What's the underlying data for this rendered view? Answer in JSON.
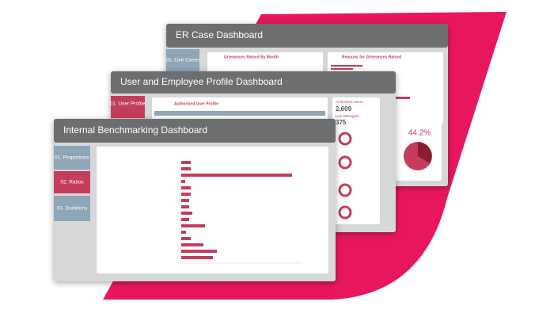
{
  "dashboards": [
    {
      "title": "ER Case Dashboard",
      "tabs": [
        "01. Live Cases"
      ],
      "panels": [
        "Grievances Raised By Month",
        "Reasons for Grievances Raised"
      ],
      "gauge": "44.2%"
    },
    {
      "title": "User and Employee Profile Dashboard",
      "tabs": [
        "01. User Profile"
      ],
      "panels": [
        "Authorised User Profile"
      ],
      "kpis": [
        {
          "label": "Authorised Users",
          "value": "2,609"
        },
        {
          "label": "Line Managers",
          "value": "375"
        }
      ]
    },
    {
      "title": "Internal Benchmarking Dashboard",
      "tabs": [
        "01. Proportions",
        "02. Ratios",
        "03. Durations"
      ]
    }
  ]
}
